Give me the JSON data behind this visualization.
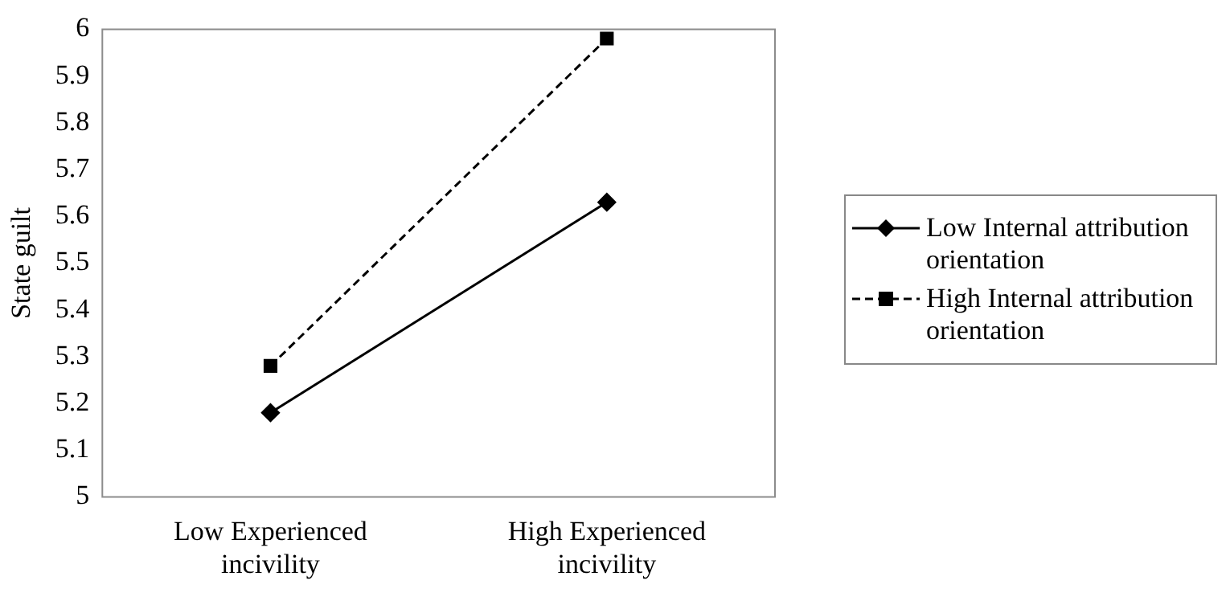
{
  "chart_data": {
    "type": "line",
    "ylabel": "State guilt",
    "categories": [
      "Low Experienced incivility",
      "High Experienced incivility"
    ],
    "series": [
      {
        "name": "Low Internal attribution orientation",
        "color": "#000000",
        "values": [
          5.18,
          5.63
        ],
        "marker": "diamond",
        "line_style": "solid"
      },
      {
        "name": "High Internal attribution orientation",
        "color": "#000000",
        "values": [
          5.28,
          5.98
        ],
        "marker": "square",
        "line_style": "dashed"
      }
    ],
    "ylim": [
      5,
      6
    ],
    "yticks": [
      5,
      5.1,
      5.2,
      5.3,
      5.4,
      5.5,
      5.6,
      5.7,
      5.8,
      5.9,
      6
    ],
    "grid": false,
    "legend": "right"
  }
}
